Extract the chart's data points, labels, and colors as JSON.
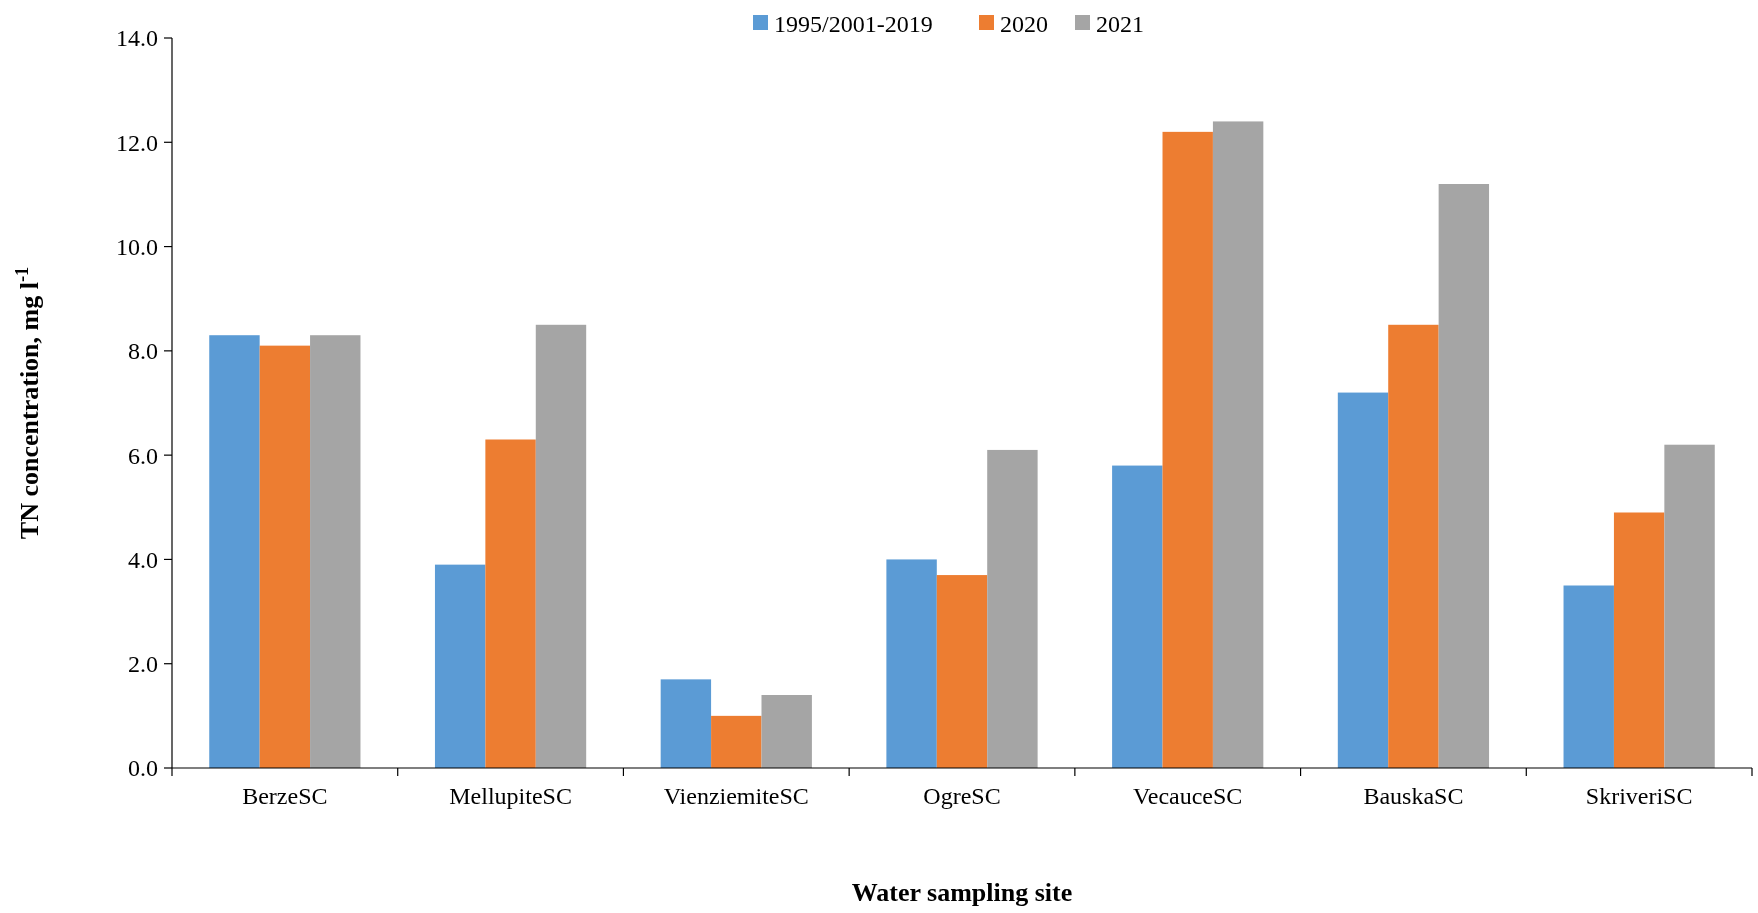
{
  "chart_data": {
    "type": "bar",
    "xlabel": "Water sampling site",
    "ylabel": "TN concentration, mg l$^{-1}$",
    "categories": [
      "BerzeSC",
      "MellupiteSC",
      "VienziemiteSC",
      "OgreSC",
      "VecauceSC",
      "BauskaSC",
      "SkriveriSC"
    ],
    "series": [
      {
        "name": "1995/2001-2019",
        "color": "#5b9bd5",
        "values": [
          8.3,
          3.9,
          1.7,
          4.0,
          5.8,
          7.2,
          3.5
        ]
      },
      {
        "name": "2020",
        "color": "#ed7d31",
        "values": [
          8.1,
          6.3,
          1.0,
          3.7,
          12.2,
          8.5,
          4.9
        ]
      },
      {
        "name": "2021",
        "color": "#a5a5a5",
        "values": [
          8.3,
          8.5,
          1.4,
          6.1,
          12.4,
          11.2,
          6.2
        ]
      }
    ],
    "ylim": [
      0,
      14
    ],
    "yticks": [
      {
        "value": 0,
        "label": "0.0"
      },
      {
        "value": 2,
        "label": "2.0"
      },
      {
        "value": 4,
        "label": "4.0"
      },
      {
        "value": 6,
        "label": "6.0"
      },
      {
        "value": 8,
        "label": "8.0"
      },
      {
        "value": 10,
        "label": "10.0"
      },
      {
        "value": 12,
        "label": "12.0"
      },
      {
        "value": 14,
        "label": "14.0"
      }
    ],
    "legend": "top",
    "grid": false
  }
}
